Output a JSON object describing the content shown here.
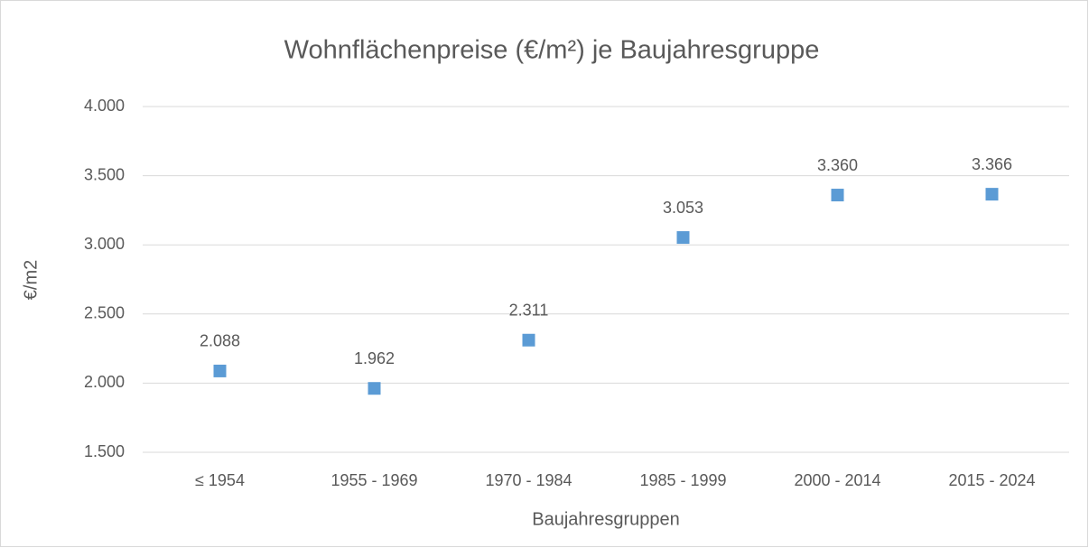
{
  "chart_data": {
    "type": "scatter",
    "title": "Wohnflächenpreise (€/m²) je Baujahresgruppe",
    "x_label": "Baujahresgruppen",
    "y_label": "€/m2",
    "categories": [
      "≤ 1954",
      "1955 - 1969",
      "1970 - 1984",
      "1985 - 1999",
      "2000 - 2014",
      "2015 - 2024"
    ],
    "values": [
      2088,
      1962,
      2311,
      3053,
      3360,
      3366
    ],
    "value_labels": [
      "2.088",
      "1.962",
      "2.311",
      "3.053",
      "3.360",
      "3.366"
    ],
    "color": "#5b9bd5",
    "marker": "square",
    "ylim": [
      1500,
      4000
    ],
    "yticks": [
      {
        "value": 1500,
        "label": "1.500"
      },
      {
        "value": 2000,
        "label": "2.000"
      },
      {
        "value": 2500,
        "label": "2.500"
      },
      {
        "value": 3000,
        "label": "3.000"
      },
      {
        "value": 3500,
        "label": "3.500"
      },
      {
        "value": 4000,
        "label": "4.000"
      }
    ],
    "grid": true
  }
}
